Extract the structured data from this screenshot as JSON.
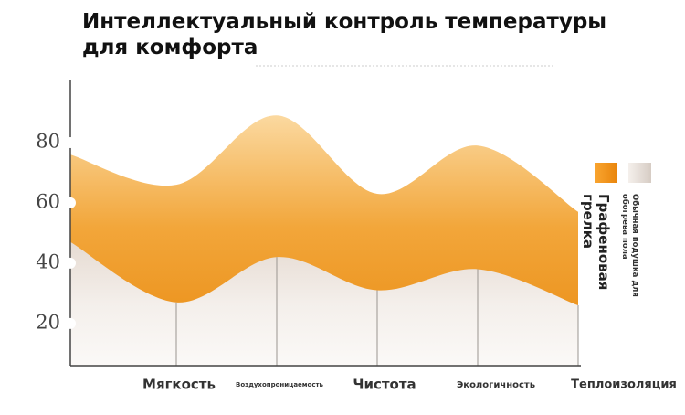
{
  "chart_data": {
    "type": "area",
    "title": "Интеллектуальный контроль температуры для комфорта",
    "categories": [
      null,
      "Мягкость",
      "Воздухопроницаемость",
      "Чистота",
      "Экологичность",
      "Теплоизоляция"
    ],
    "series": [
      {
        "name": "Графеновая грелка",
        "color": "#f0a030",
        "values": [
          76,
          66,
          89,
          63,
          79,
          57
        ]
      },
      {
        "name": "Обычная подушка для обогрева пола",
        "color": "#efe8e2",
        "values": [
          47,
          27,
          42,
          31,
          38,
          26
        ]
      }
    ],
    "ylim": [
      6,
      100
    ],
    "yticks": [
      20,
      40,
      60,
      80
    ]
  }
}
